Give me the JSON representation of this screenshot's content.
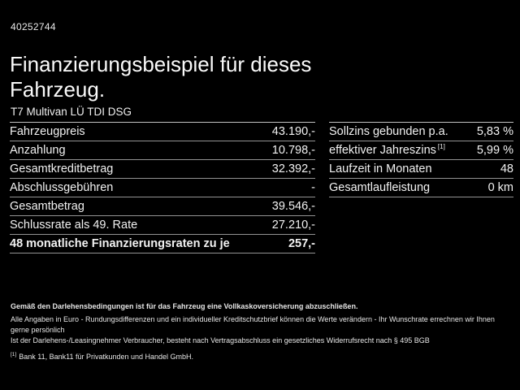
{
  "header": {
    "vehicle_id": "40252744",
    "title": "Finanzierungsbeispiel für dieses Fahrzeug.",
    "subtitle": "T7 Multivan LÜ TDI DSG"
  },
  "finance_table": {
    "rows": [
      {
        "label": "Fahrzeugpreis",
        "value": "43.190,-"
      },
      {
        "label": "Anzahlung",
        "value": "10.798,-"
      },
      {
        "label": "Gesamtkreditbetrag",
        "value": "32.392,-"
      },
      {
        "label": "Abschlussgebühren",
        "value": "-"
      },
      {
        "label": "Gesamtbetrag",
        "value": "39.546,-"
      },
      {
        "label": "Schlussrate als 49. Rate",
        "value": "27.210,-"
      },
      {
        "label": "48 monatliche Finanzierungsraten zu je",
        "value": "257,-"
      }
    ]
  },
  "conditions_table": {
    "rows": [
      {
        "label": "Sollzins gebunden p.a.",
        "value": "5,83 %"
      },
      {
        "label": "effektiver Jahreszins",
        "footnote_ref": "[1]",
        "value": "5,99 %"
      },
      {
        "label": "Laufzeit in Monaten",
        "value": "48"
      },
      {
        "label": "Gesamtlaufleistung",
        "value": "0 km"
      }
    ]
  },
  "disclaimer": {
    "line1": "Gemäß den Darlehensbedingungen ist für das Fahrzeug eine Vollkaskoversicherung abzuschließen.",
    "line2": "Alle Angaben in Euro - Rundungsdifferenzen und ein individueller Kreditschutzbrief können die Werte verändern - Ihr Wunschrate errechnen wir Ihnen gerne persönlich",
    "line3": "Ist der Darlehens-/Leasingnehmer Verbraucher, besteht nach Vertragsabschluss ein gesetzliches Widerrufsrecht nach § 495 BGB",
    "footnote_marker": "[1]",
    "footnote_text": "Bank 11, Bank11 für Privatkunden und Handel GmbH."
  },
  "colors": {
    "background": "#000000",
    "text": "#f2f2f2",
    "divider": "#939393",
    "table_top_border": "#c2c2c2"
  }
}
